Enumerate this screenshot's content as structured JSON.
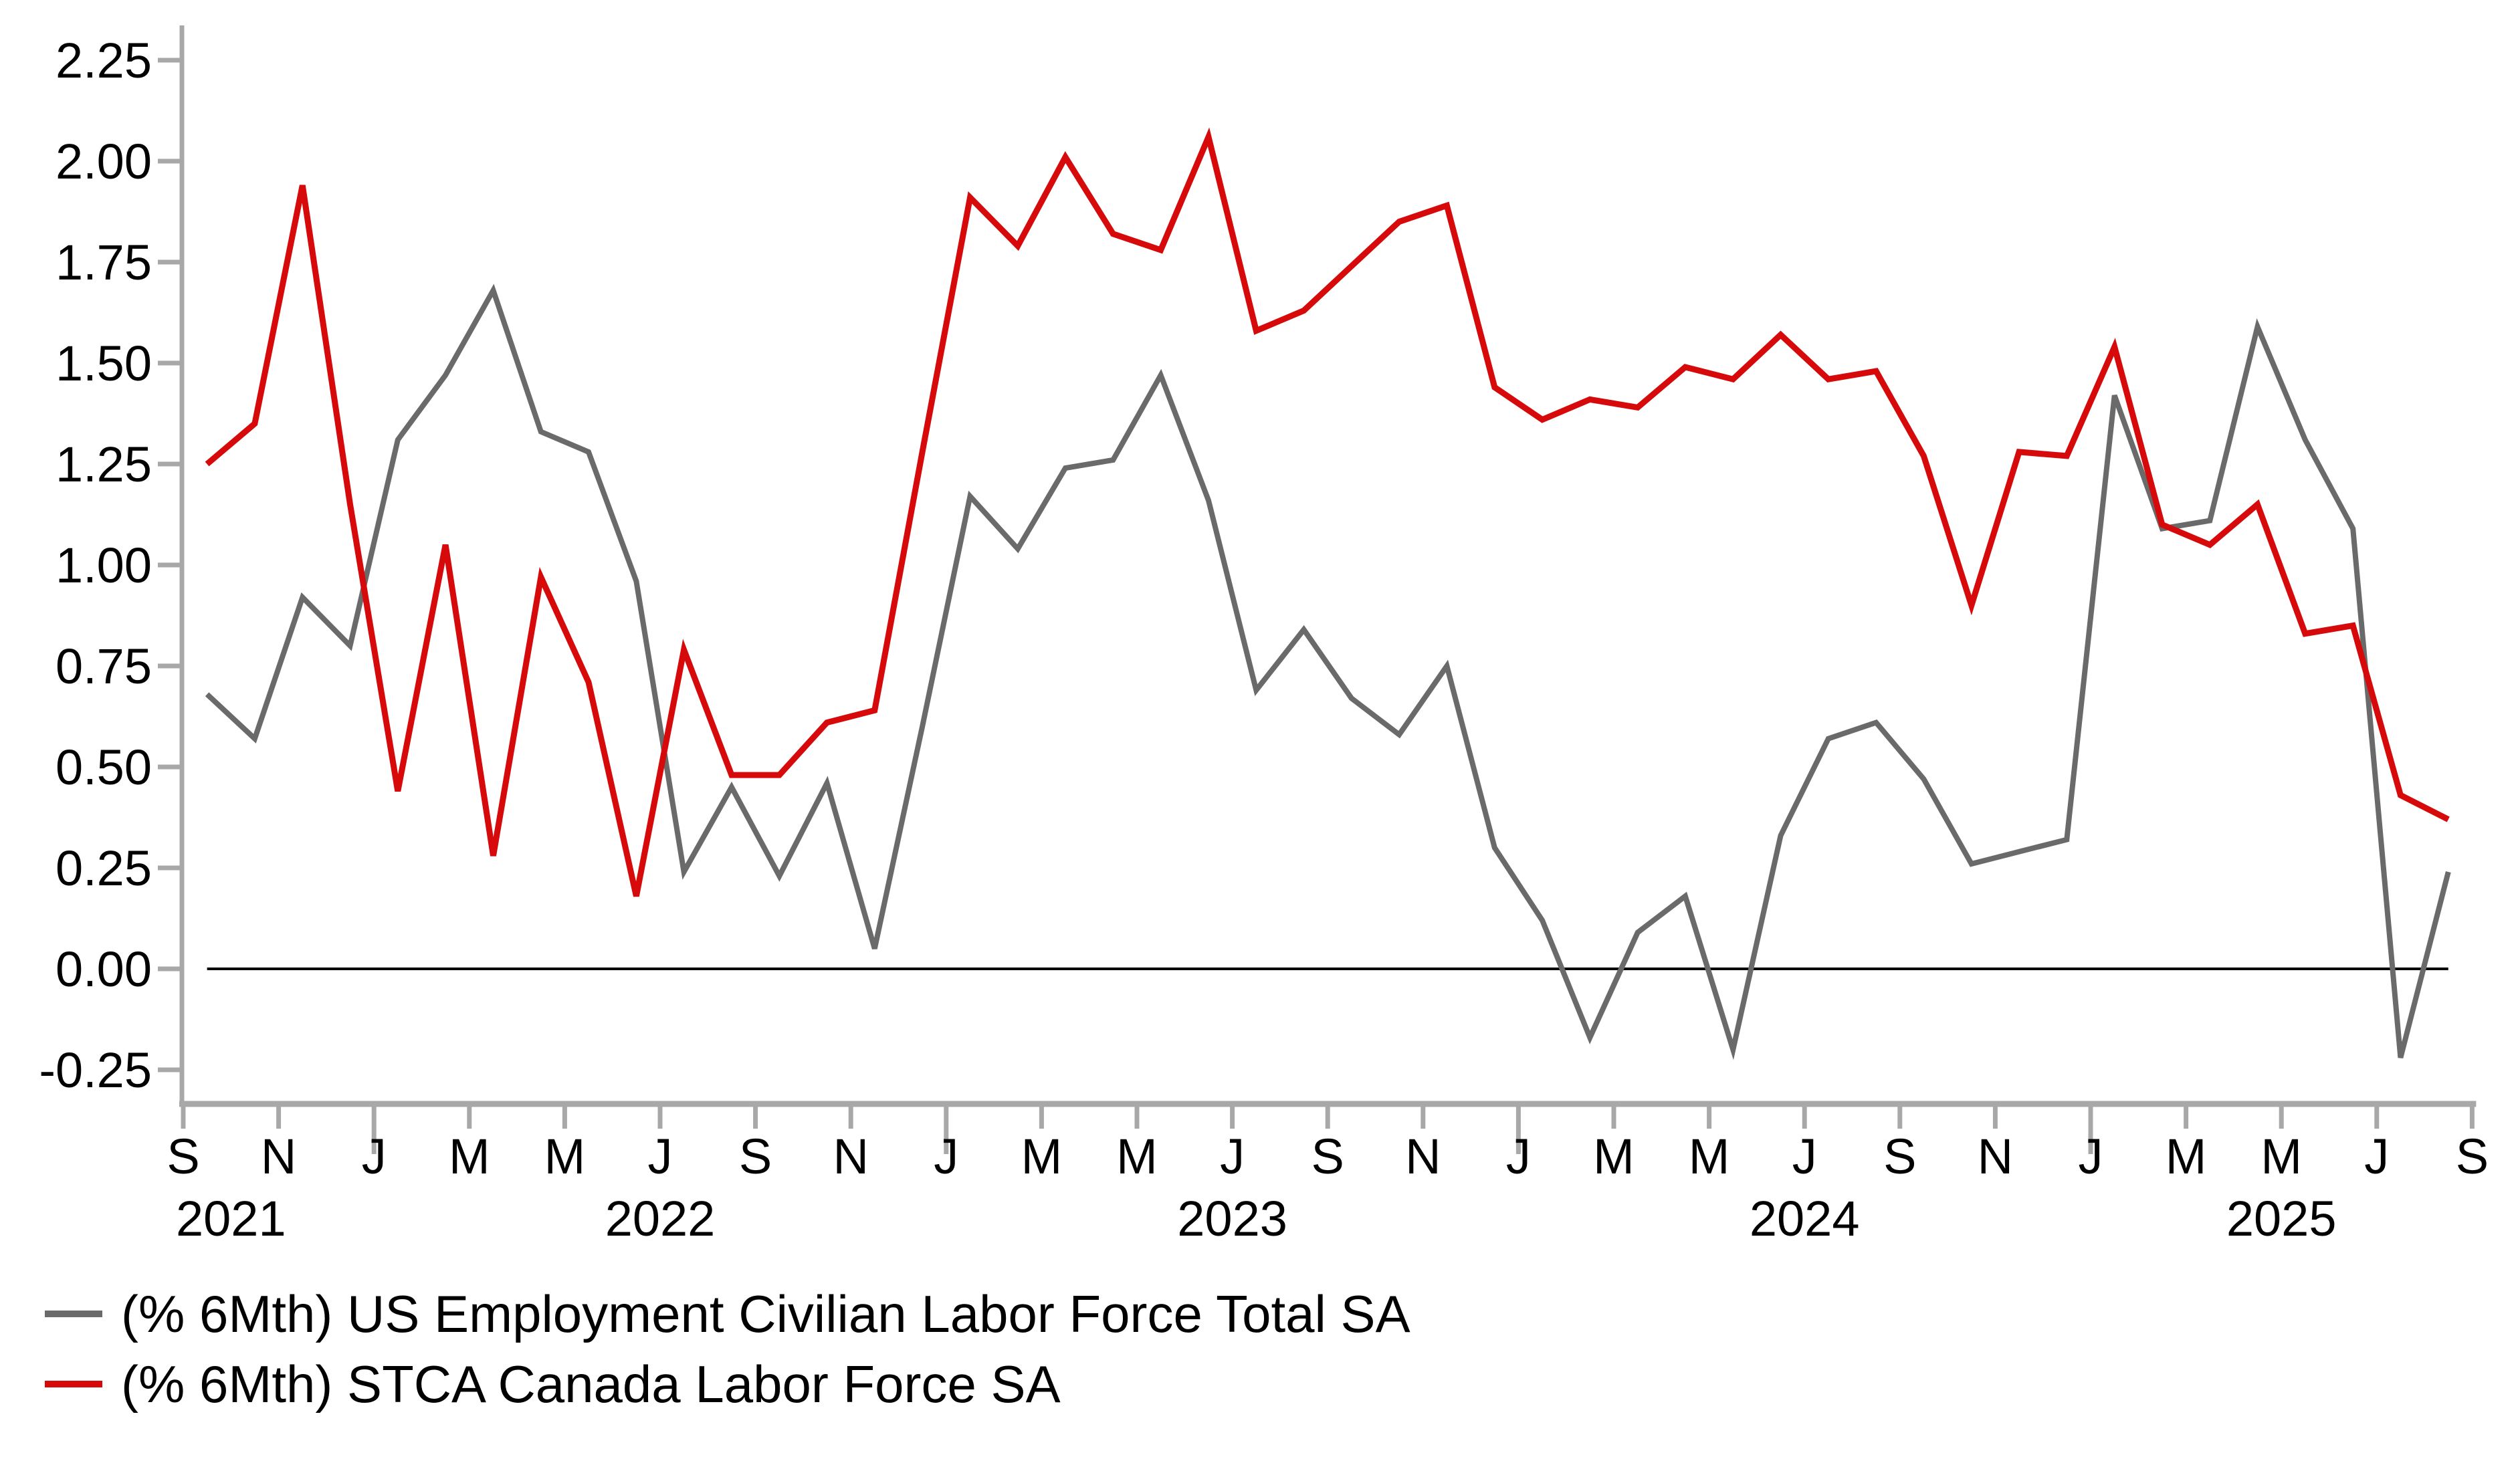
{
  "chart_data": {
    "type": "line",
    "title": "",
    "xlabel": "",
    "ylabel": "",
    "ylim": [
      -0.25,
      2.25
    ],
    "y_tick_step": 0.25,
    "y_tick_labels": [
      "2.25",
      "2.00",
      "1.75",
      "1.50",
      "1.25",
      "1.00",
      "0.75",
      "0.50",
      "0.25",
      "0.00",
      "-0.25"
    ],
    "x_tick_labels": [
      "S",
      "N",
      "J",
      "M",
      "M",
      "J",
      "S",
      "N",
      "J",
      "M",
      "M",
      "J",
      "S",
      "N",
      "J",
      "M",
      "M",
      "J",
      "S",
      "N",
      "J",
      "M",
      "M",
      "J",
      "S"
    ],
    "year_labels": [
      "2021",
      "2022",
      "2023",
      "2024",
      "2025"
    ],
    "grid": "zero-line-only",
    "legend_position": "bottom-left",
    "zero_line_color": "#000000",
    "axis_color": "#a8a8a8",
    "months": [
      "Sep 2021",
      "Oct 2021",
      "Nov 2021",
      "Dec 2021",
      "Jan 2022",
      "Feb 2022",
      "Mar 2022",
      "Apr 2022",
      "May 2022",
      "Jun 2022",
      "Jul 2022",
      "Aug 2022",
      "Sep 2022",
      "Oct 2022",
      "Nov 2022",
      "Dec 2022",
      "Jan 2023",
      "Feb 2023",
      "Mar 2023",
      "Apr 2023",
      "May 2023",
      "Jun 2023",
      "Jul 2023",
      "Aug 2023",
      "Sep 2023",
      "Oct 2023",
      "Nov 2023",
      "Dec 2023",
      "Jan 2024",
      "Feb 2024",
      "Mar 2024",
      "Apr 2024",
      "May 2024",
      "Jun 2024",
      "Jul 2024",
      "Aug 2024",
      "Sep 2024",
      "Oct 2024",
      "Nov 2024",
      "Dec 2024",
      "Jan 2025",
      "Feb 2025",
      "Mar 2025",
      "Apr 2025",
      "May 2025",
      "Jun 2025",
      "Jul 2025",
      "Aug 2025"
    ],
    "series": [
      {
        "name": "(% 6Mth) US Employment Civilian Labor Force Total SA",
        "color": "#6a6a6a",
        "stroke_width": 8,
        "values": [
          0.68,
          0.57,
          0.92,
          0.8,
          1.31,
          1.47,
          1.68,
          1.33,
          1.28,
          0.96,
          0.24,
          0.45,
          0.23,
          0.46,
          0.05,
          0.6,
          1.17,
          1.04,
          1.24,
          1.26,
          1.47,
          1.16,
          0.69,
          0.84,
          0.67,
          0.58,
          0.75,
          0.3,
          0.12,
          -0.17,
          0.09,
          0.18,
          -0.2,
          0.33,
          0.57,
          0.61,
          0.47,
          0.26,
          0.29,
          0.32,
          1.42,
          1.09,
          1.11,
          1.59,
          1.31,
          1.09,
          -0.22,
          0.24
        ]
      },
      {
        "name": "(% 6Mth) STCA Canada Labor Force SA",
        "color": "#d60a0a",
        "stroke_width": 9,
        "values": [
          1.25,
          1.35,
          1.94,
          1.15,
          0.44,
          1.05,
          0.28,
          0.97,
          0.71,
          0.18,
          0.79,
          0.48,
          0.48,
          0.61,
          0.64,
          1.28,
          1.91,
          1.79,
          2.01,
          1.82,
          1.78,
          2.06,
          1.58,
          1.63,
          1.74,
          1.85,
          1.89,
          1.44,
          1.36,
          1.41,
          1.39,
          1.49,
          1.46,
          1.57,
          1.46,
          1.48,
          1.27,
          0.9,
          1.28,
          1.27,
          1.54,
          1.1,
          1.05,
          1.15,
          0.83,
          0.85,
          0.43,
          0.37
        ]
      }
    ]
  }
}
